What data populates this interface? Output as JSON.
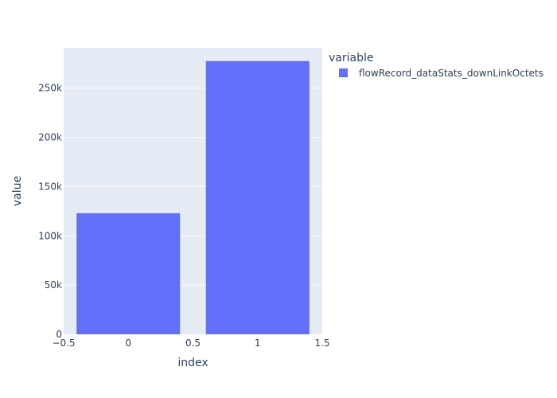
{
  "chart_data": {
    "type": "bar",
    "x": [
      0,
      1
    ],
    "series": [
      {
        "name": "flowRecord_dataStats_downLinkOctets",
        "values": [
          123000,
          277500
        ]
      }
    ],
    "xlabel": "index",
    "ylabel": "value",
    "xlim": [
      -0.5,
      1.5
    ],
    "ylim": [
      0,
      291000
    ],
    "x_ticks": [
      -0.5,
      0,
      0.5,
      1,
      1.5
    ],
    "x_tick_labels": [
      "−0.5",
      "0",
      "0.5",
      "1",
      "1.5"
    ],
    "y_ticks": [
      0,
      50000,
      100000,
      150000,
      200000,
      250000
    ],
    "y_tick_labels": [
      "0",
      "50k",
      "100k",
      "150k",
      "200k",
      "250k"
    ],
    "grid": true,
    "legend": {
      "title": "variable",
      "placement": "right"
    },
    "colors": {
      "plot_background": "#E5ECF6",
      "bar": "#636EFA",
      "grid": "#FFFFFF",
      "text": "#2A3F5F"
    }
  }
}
